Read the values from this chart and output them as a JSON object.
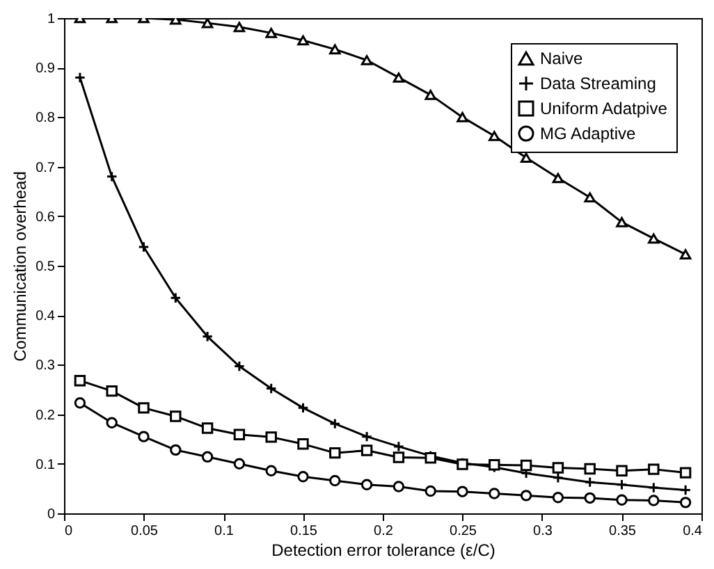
{
  "chart_data": {
    "type": "line",
    "xlabel": "Detection error tolerance (ε/C)",
    "ylabel": "Communication overhead",
    "x": [
      0.01,
      0.03,
      0.05,
      0.07,
      0.09,
      0.11,
      0.13,
      0.15,
      0.17,
      0.19,
      0.21,
      0.23,
      0.25,
      0.27,
      0.29,
      0.31,
      0.33,
      0.35,
      0.37,
      0.39
    ],
    "series": [
      {
        "name": "Naive",
        "color": "#000000",
        "marker": "triangle",
        "values": [
          1,
          1,
          1,
          0.997,
          0.99,
          0.982,
          0.97,
          0.955,
          0.937,
          0.915,
          0.88,
          0.845,
          0.8,
          0.762,
          0.718,
          0.677,
          0.638,
          0.588,
          0.555,
          0.523
        ]
      },
      {
        "name": "Data Streaming",
        "color": "#000000",
        "marker": "cross",
        "values": [
          0.88,
          0.68,
          0.538,
          0.435,
          0.357,
          0.297,
          0.252,
          0.213,
          0.181,
          0.155,
          0.135,
          0.116,
          0.102,
          0.093,
          0.081,
          0.072,
          0.063,
          0.058,
          0.052,
          0.047
        ]
      },
      {
        "name": "Uniform Adatpive",
        "color": "#000000",
        "marker": "square",
        "values": [
          0.268,
          0.247,
          0.213,
          0.196,
          0.172,
          0.159,
          0.154,
          0.14,
          0.122,
          0.127,
          0.113,
          0.112,
          0.099,
          0.098,
          0.097,
          0.092,
          0.09,
          0.086,
          0.089,
          0.082
        ]
      },
      {
        "name": "MG Adaptive",
        "color": "#000000",
        "marker": "circle",
        "values": [
          0.223,
          0.183,
          0.155,
          0.128,
          0.114,
          0.1,
          0.086,
          0.074,
          0.066,
          0.058,
          0.054,
          0.045,
          0.044,
          0.04,
          0.036,
          0.032,
          0.031,
          0.027,
          0.026,
          0.022
        ]
      }
    ],
    "xlim": [
      0,
      0.4
    ],
    "xticks": [
      0,
      0.05,
      0.1,
      0.15,
      0.2,
      0.25,
      0.3,
      0.35,
      0.4
    ],
    "ylim": [
      0,
      1
    ],
    "yticks": [
      0,
      0.1,
      0.2,
      0.3,
      0.4,
      0.5,
      0.6,
      0.7,
      0.8,
      0.9,
      1
    ],
    "grid": false,
    "legend": "top right",
    "line_style": "solid"
  }
}
